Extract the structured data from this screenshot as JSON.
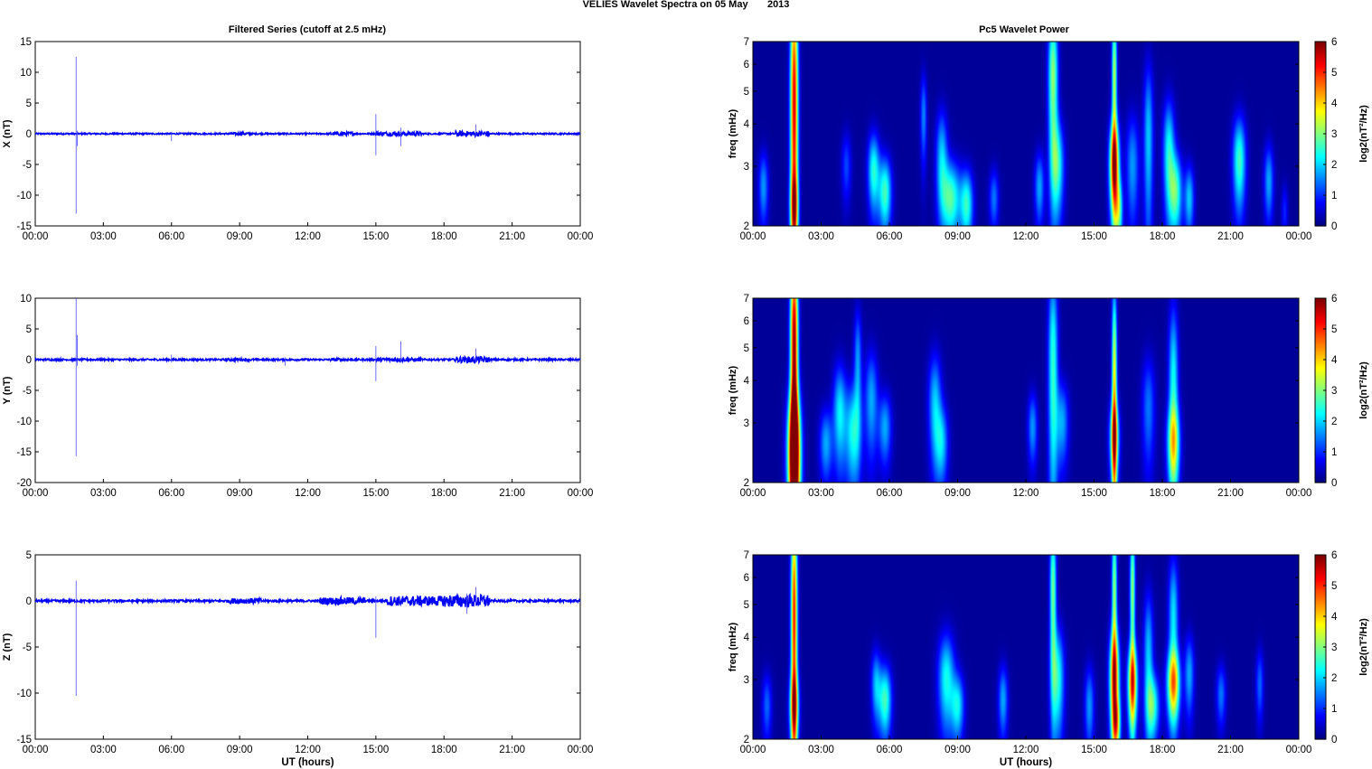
{
  "figure": {
    "title": "VELIES Wavelet Spectra on 05 May       2013",
    "left_title": "Filtered Series (cutoff at 2.5 mHz)",
    "right_title": "Pc5 Wavelet Power"
  },
  "colors": {
    "trace": "#0000ff",
    "axis": "#000000",
    "background": "#ffffff",
    "colormap": "jet",
    "spectrogram_background": "#00008f"
  },
  "chart_data": [
    {
      "type": "line",
      "component": "X",
      "ylabel": "X (nT)",
      "xlabel": "",
      "xlim": [
        0,
        24
      ],
      "ylim": [
        -15,
        15
      ],
      "yticks": [
        -15,
        -10,
        -5,
        0,
        5,
        10,
        15
      ],
      "xtick_labels": [
        "00:00",
        "03:00",
        "06:00",
        "09:00",
        "12:00",
        "15:00",
        "18:00",
        "21:00",
        "00:00"
      ],
      "noise_level": 0.12,
      "noisy_intervals": [
        [
          8.5,
          9.5,
          0.2
        ],
        [
          13.0,
          14.0,
          0.3
        ],
        [
          15.0,
          17.0,
          0.35
        ],
        [
          18.5,
          20.0,
          0.45
        ]
      ],
      "spikes": [
        {
          "x": 1.8,
          "max": 12.5,
          "min": -13.0
        },
        {
          "x": 1.85,
          "max": 0.5,
          "min": -2.0
        },
        {
          "x": 6.0,
          "max": 0.3,
          "min": -1.2
        },
        {
          "x": 15.0,
          "max": 3.2,
          "min": -3.5
        },
        {
          "x": 16.1,
          "max": 1.0,
          "min": -2.0
        },
        {
          "x": 19.4,
          "max": 1.5,
          "min": -0.5
        }
      ]
    },
    {
      "type": "line",
      "component": "Y",
      "ylabel": "Y (nT)",
      "xlabel": "",
      "xlim": [
        0,
        24
      ],
      "ylim": [
        -20,
        10
      ],
      "yticks": [
        -20,
        -15,
        -10,
        -5,
        0,
        5,
        10
      ],
      "xtick_labels": [
        "00:00",
        "03:00",
        "06:00",
        "09:00",
        "12:00",
        "15:00",
        "18:00",
        "21:00",
        "00:00"
      ],
      "noise_level": 0.15,
      "noisy_intervals": [
        [
          8.5,
          9.5,
          0.2
        ],
        [
          13.0,
          14.0,
          0.25
        ],
        [
          15.0,
          17.0,
          0.3
        ],
        [
          18.5,
          20.0,
          0.5
        ]
      ],
      "spikes": [
        {
          "x": 1.8,
          "max": 10.0,
          "min": -15.7
        },
        {
          "x": 1.85,
          "max": 4.0,
          "min": -1.0
        },
        {
          "x": 6.0,
          "max": 0.8,
          "min": -0.5
        },
        {
          "x": 11.0,
          "max": 0.4,
          "min": -1.0
        },
        {
          "x": 15.0,
          "max": 2.2,
          "min": -3.5
        },
        {
          "x": 16.1,
          "max": 3.0,
          "min": -0.5
        },
        {
          "x": 19.4,
          "max": 1.8,
          "min": -0.5
        }
      ]
    },
    {
      "type": "line",
      "component": "Z",
      "ylabel": "Z (nT)",
      "xlabel": "UT (hours)",
      "xlim": [
        0,
        24
      ],
      "ylim": [
        -15,
        5
      ],
      "yticks": [
        -15,
        -10,
        -5,
        0,
        5
      ],
      "xtick_labels": [
        "00:00",
        "03:00",
        "06:00",
        "09:00",
        "12:00",
        "15:00",
        "18:00",
        "21:00",
        "00:00"
      ],
      "noise_level": 0.12,
      "noisy_intervals": [
        [
          8.5,
          10.0,
          0.3
        ],
        [
          12.5,
          14.5,
          0.4
        ],
        [
          15.5,
          18.0,
          0.55
        ],
        [
          18.0,
          20.0,
          0.7
        ]
      ],
      "spikes": [
        {
          "x": 1.8,
          "max": 2.2,
          "min": -10.3
        },
        {
          "x": 15.0,
          "max": 0.5,
          "min": -4.0
        },
        {
          "x": 19.0,
          "max": 0.8,
          "min": -1.4
        },
        {
          "x": 19.4,
          "max": 1.5,
          "min": -0.5
        }
      ]
    },
    {
      "type": "heatmap",
      "component": "X",
      "ylabel": "freq (mHz)",
      "xlabel": "",
      "xlim": [
        0,
        24
      ],
      "ylim": [
        2,
        7
      ],
      "yscale": "log",
      "yticks": [
        2,
        3,
        4,
        5,
        6,
        7
      ],
      "xtick_labels": [
        "00:00",
        "03:00",
        "06:00",
        "09:00",
        "12:00",
        "15:00",
        "18:00",
        "21:00",
        "00:00"
      ],
      "colorbar_label": "log2(nT²/Hz)",
      "clim": [
        0,
        6
      ],
      "colorbar_ticks": [
        0,
        1,
        2,
        3,
        4,
        5,
        6
      ],
      "blobs": [
        {
          "t": 1.8,
          "f": 4.5,
          "wt": 0.12,
          "wf": 3.5,
          "v": 5.3
        },
        {
          "t": 1.8,
          "f": 2.3,
          "wt": 0.12,
          "wf": 0.35,
          "v": 2.2
        },
        {
          "t": 0.45,
          "f": 2.6,
          "wt": 0.15,
          "wf": 0.45,
          "v": 1.5
        },
        {
          "t": 4.1,
          "f": 3.0,
          "wt": 0.15,
          "wf": 0.5,
          "v": 1.0
        },
        {
          "t": 5.3,
          "f": 2.9,
          "wt": 0.18,
          "wf": 0.55,
          "v": 2.3
        },
        {
          "t": 5.8,
          "f": 2.5,
          "wt": 0.2,
          "wf": 0.45,
          "v": 2.5
        },
        {
          "t": 7.5,
          "f": 4.2,
          "wt": 0.1,
          "wf": 0.9,
          "v": 1.4
        },
        {
          "t": 8.3,
          "f": 3.2,
          "wt": 0.18,
          "wf": 0.75,
          "v": 1.8
        },
        {
          "t": 8.7,
          "f": 2.4,
          "wt": 0.3,
          "wf": 0.45,
          "v": 2.6
        },
        {
          "t": 9.4,
          "f": 2.3,
          "wt": 0.2,
          "wf": 0.4,
          "v": 2.3
        },
        {
          "t": 10.6,
          "f": 2.4,
          "wt": 0.15,
          "wf": 0.35,
          "v": 1.3
        },
        {
          "t": 12.6,
          "f": 2.6,
          "wt": 0.15,
          "wf": 0.45,
          "v": 1.6
        },
        {
          "t": 13.2,
          "f": 5.5,
          "wt": 0.15,
          "wf": 2.0,
          "v": 3.0
        },
        {
          "t": 13.4,
          "f": 3.0,
          "wt": 0.2,
          "wf": 0.7,
          "v": 2.2
        },
        {
          "t": 15.9,
          "f": 3.0,
          "wt": 0.15,
          "wf": 0.7,
          "v": 5.0
        },
        {
          "t": 15.9,
          "f": 5.5,
          "wt": 0.08,
          "wf": 2.0,
          "v": 3.2
        },
        {
          "t": 16.1,
          "f": 2.2,
          "wt": 0.12,
          "wf": 0.35,
          "v": 2.2
        },
        {
          "t": 16.7,
          "f": 3.0,
          "wt": 0.2,
          "wf": 0.8,
          "v": 1.5
        },
        {
          "t": 17.4,
          "f": 3.6,
          "wt": 0.15,
          "wf": 1.5,
          "v": 1.8
        },
        {
          "t": 18.3,
          "f": 3.3,
          "wt": 0.18,
          "wf": 0.9,
          "v": 2.2
        },
        {
          "t": 18.6,
          "f": 2.5,
          "wt": 0.2,
          "wf": 0.5,
          "v": 2.5
        },
        {
          "t": 19.2,
          "f": 2.4,
          "wt": 0.15,
          "wf": 0.4,
          "v": 1.8
        },
        {
          "t": 21.4,
          "f": 3.1,
          "wt": 0.2,
          "wf": 0.7,
          "v": 2.5
        },
        {
          "t": 22.7,
          "f": 2.7,
          "wt": 0.15,
          "wf": 0.5,
          "v": 1.6
        },
        {
          "t": 23.4,
          "f": 2.2,
          "wt": 0.1,
          "wf": 0.3,
          "v": 0.8
        }
      ]
    },
    {
      "type": "heatmap",
      "component": "Y",
      "ylabel": "freq (mHz)",
      "xlabel": "",
      "xlim": [
        0,
        24
      ],
      "ylim": [
        2,
        7
      ],
      "yscale": "log",
      "yticks": [
        2,
        3,
        4,
        5,
        6,
        7
      ],
      "xtick_labels": [
        "00:00",
        "03:00",
        "06:00",
        "09:00",
        "12:00",
        "15:00",
        "18:00",
        "21:00",
        "00:00"
      ],
      "colorbar_label": "log2(nT²/Hz)",
      "clim": [
        0,
        6
      ],
      "colorbar_ticks": [
        0,
        1,
        2,
        3,
        4,
        5,
        6
      ],
      "blobs": [
        {
          "t": 1.8,
          "f": 2.4,
          "wt": 0.2,
          "wf": 0.8,
          "v": 6.0
        },
        {
          "t": 1.8,
          "f": 5.0,
          "wt": 0.12,
          "wf": 3.0,
          "v": 5.8
        },
        {
          "t": 3.2,
          "f": 2.6,
          "wt": 0.2,
          "wf": 0.45,
          "v": 1.6
        },
        {
          "t": 3.8,
          "f": 3.2,
          "wt": 0.2,
          "wf": 0.8,
          "v": 2.0
        },
        {
          "t": 4.4,
          "f": 2.8,
          "wt": 0.25,
          "wf": 0.7,
          "v": 2.2
        },
        {
          "t": 4.6,
          "f": 4.6,
          "wt": 0.12,
          "wf": 1.2,
          "v": 1.5
        },
        {
          "t": 5.2,
          "f": 3.5,
          "wt": 0.2,
          "wf": 0.9,
          "v": 1.6
        },
        {
          "t": 5.8,
          "f": 2.9,
          "wt": 0.2,
          "wf": 0.5,
          "v": 1.6
        },
        {
          "t": 8.0,
          "f": 3.4,
          "wt": 0.2,
          "wf": 0.9,
          "v": 1.8
        },
        {
          "t": 8.3,
          "f": 2.6,
          "wt": 0.2,
          "wf": 0.5,
          "v": 1.7
        },
        {
          "t": 12.3,
          "f": 2.9,
          "wt": 0.15,
          "wf": 0.5,
          "v": 1.5
        },
        {
          "t": 13.2,
          "f": 4.4,
          "wt": 0.15,
          "wf": 2.5,
          "v": 2.4
        },
        {
          "t": 13.6,
          "f": 3.0,
          "wt": 0.2,
          "wf": 0.6,
          "v": 1.6
        },
        {
          "t": 15.9,
          "f": 3.6,
          "wt": 0.08,
          "wf": 2.5,
          "v": 3.8
        },
        {
          "t": 15.9,
          "f": 2.7,
          "wt": 0.15,
          "wf": 0.5,
          "v": 3.0
        },
        {
          "t": 17.4,
          "f": 3.3,
          "wt": 0.2,
          "wf": 0.9,
          "v": 1.3
        },
        {
          "t": 18.5,
          "f": 3.8,
          "wt": 0.15,
          "wf": 1.8,
          "v": 2.2
        },
        {
          "t": 18.5,
          "f": 2.6,
          "wt": 0.2,
          "wf": 0.5,
          "v": 2.5
        }
      ]
    },
    {
      "type": "heatmap",
      "component": "Z",
      "ylabel": "freq (mHz)",
      "xlabel": "UT (hours)",
      "xlim": [
        0,
        24
      ],
      "ylim": [
        2,
        7
      ],
      "yscale": "log",
      "yticks": [
        2,
        3,
        4,
        5,
        6,
        7
      ],
      "xtick_labels": [
        "00:00",
        "03:00",
        "06:00",
        "09:00",
        "12:00",
        "15:00",
        "18:00",
        "21:00",
        "00:00"
      ],
      "colorbar_label": "log2(nT²/Hz)",
      "clim": [
        0,
        6
      ],
      "colorbar_ticks": [
        0,
        1,
        2,
        3,
        4,
        5,
        6
      ],
      "blobs": [
        {
          "t": 1.8,
          "f": 4.5,
          "wt": 0.1,
          "wf": 3.0,
          "v": 5.0
        },
        {
          "t": 1.8,
          "f": 2.5,
          "wt": 0.15,
          "wf": 0.4,
          "v": 2.5
        },
        {
          "t": 0.6,
          "f": 2.5,
          "wt": 0.15,
          "wf": 0.4,
          "v": 1.2
        },
        {
          "t": 5.4,
          "f": 2.9,
          "wt": 0.15,
          "wf": 0.5,
          "v": 1.6
        },
        {
          "t": 5.8,
          "f": 2.6,
          "wt": 0.2,
          "wf": 0.45,
          "v": 2.5
        },
        {
          "t": 8.5,
          "f": 3.0,
          "wt": 0.25,
          "wf": 0.7,
          "v": 2.2
        },
        {
          "t": 9.0,
          "f": 2.5,
          "wt": 0.2,
          "wf": 0.4,
          "v": 2.0
        },
        {
          "t": 11.0,
          "f": 2.6,
          "wt": 0.15,
          "wf": 0.45,
          "v": 1.6
        },
        {
          "t": 13.2,
          "f": 5.5,
          "wt": 0.1,
          "wf": 2.0,
          "v": 2.8
        },
        {
          "t": 13.4,
          "f": 3.0,
          "wt": 0.2,
          "wf": 0.8,
          "v": 2.3
        },
        {
          "t": 14.8,
          "f": 2.5,
          "wt": 0.15,
          "wf": 0.5,
          "v": 1.5
        },
        {
          "t": 15.9,
          "f": 3.0,
          "wt": 0.15,
          "wf": 0.8,
          "v": 4.6
        },
        {
          "t": 15.9,
          "f": 5.5,
          "wt": 0.08,
          "wf": 2.0,
          "v": 3.0
        },
        {
          "t": 16.0,
          "f": 2.2,
          "wt": 0.12,
          "wf": 0.3,
          "v": 2.6
        },
        {
          "t": 16.7,
          "f": 2.9,
          "wt": 0.15,
          "wf": 0.6,
          "v": 4.2
        },
        {
          "t": 16.7,
          "f": 5.5,
          "wt": 0.08,
          "wf": 2.0,
          "v": 3.0
        },
        {
          "t": 17.4,
          "f": 3.5,
          "wt": 0.15,
          "wf": 1.2,
          "v": 1.8
        },
        {
          "t": 17.6,
          "f": 2.5,
          "wt": 0.2,
          "wf": 0.4,
          "v": 2.3
        },
        {
          "t": 18.5,
          "f": 2.9,
          "wt": 0.2,
          "wf": 0.5,
          "v": 3.6
        },
        {
          "t": 18.5,
          "f": 4.5,
          "wt": 0.15,
          "wf": 1.5,
          "v": 2.0
        },
        {
          "t": 19.2,
          "f": 3.1,
          "wt": 0.15,
          "wf": 0.6,
          "v": 1.6
        },
        {
          "t": 20.6,
          "f": 2.7,
          "wt": 0.15,
          "wf": 0.4,
          "v": 1.3
        },
        {
          "t": 22.3,
          "f": 2.9,
          "wt": 0.12,
          "wf": 0.5,
          "v": 1.2
        }
      ]
    }
  ]
}
